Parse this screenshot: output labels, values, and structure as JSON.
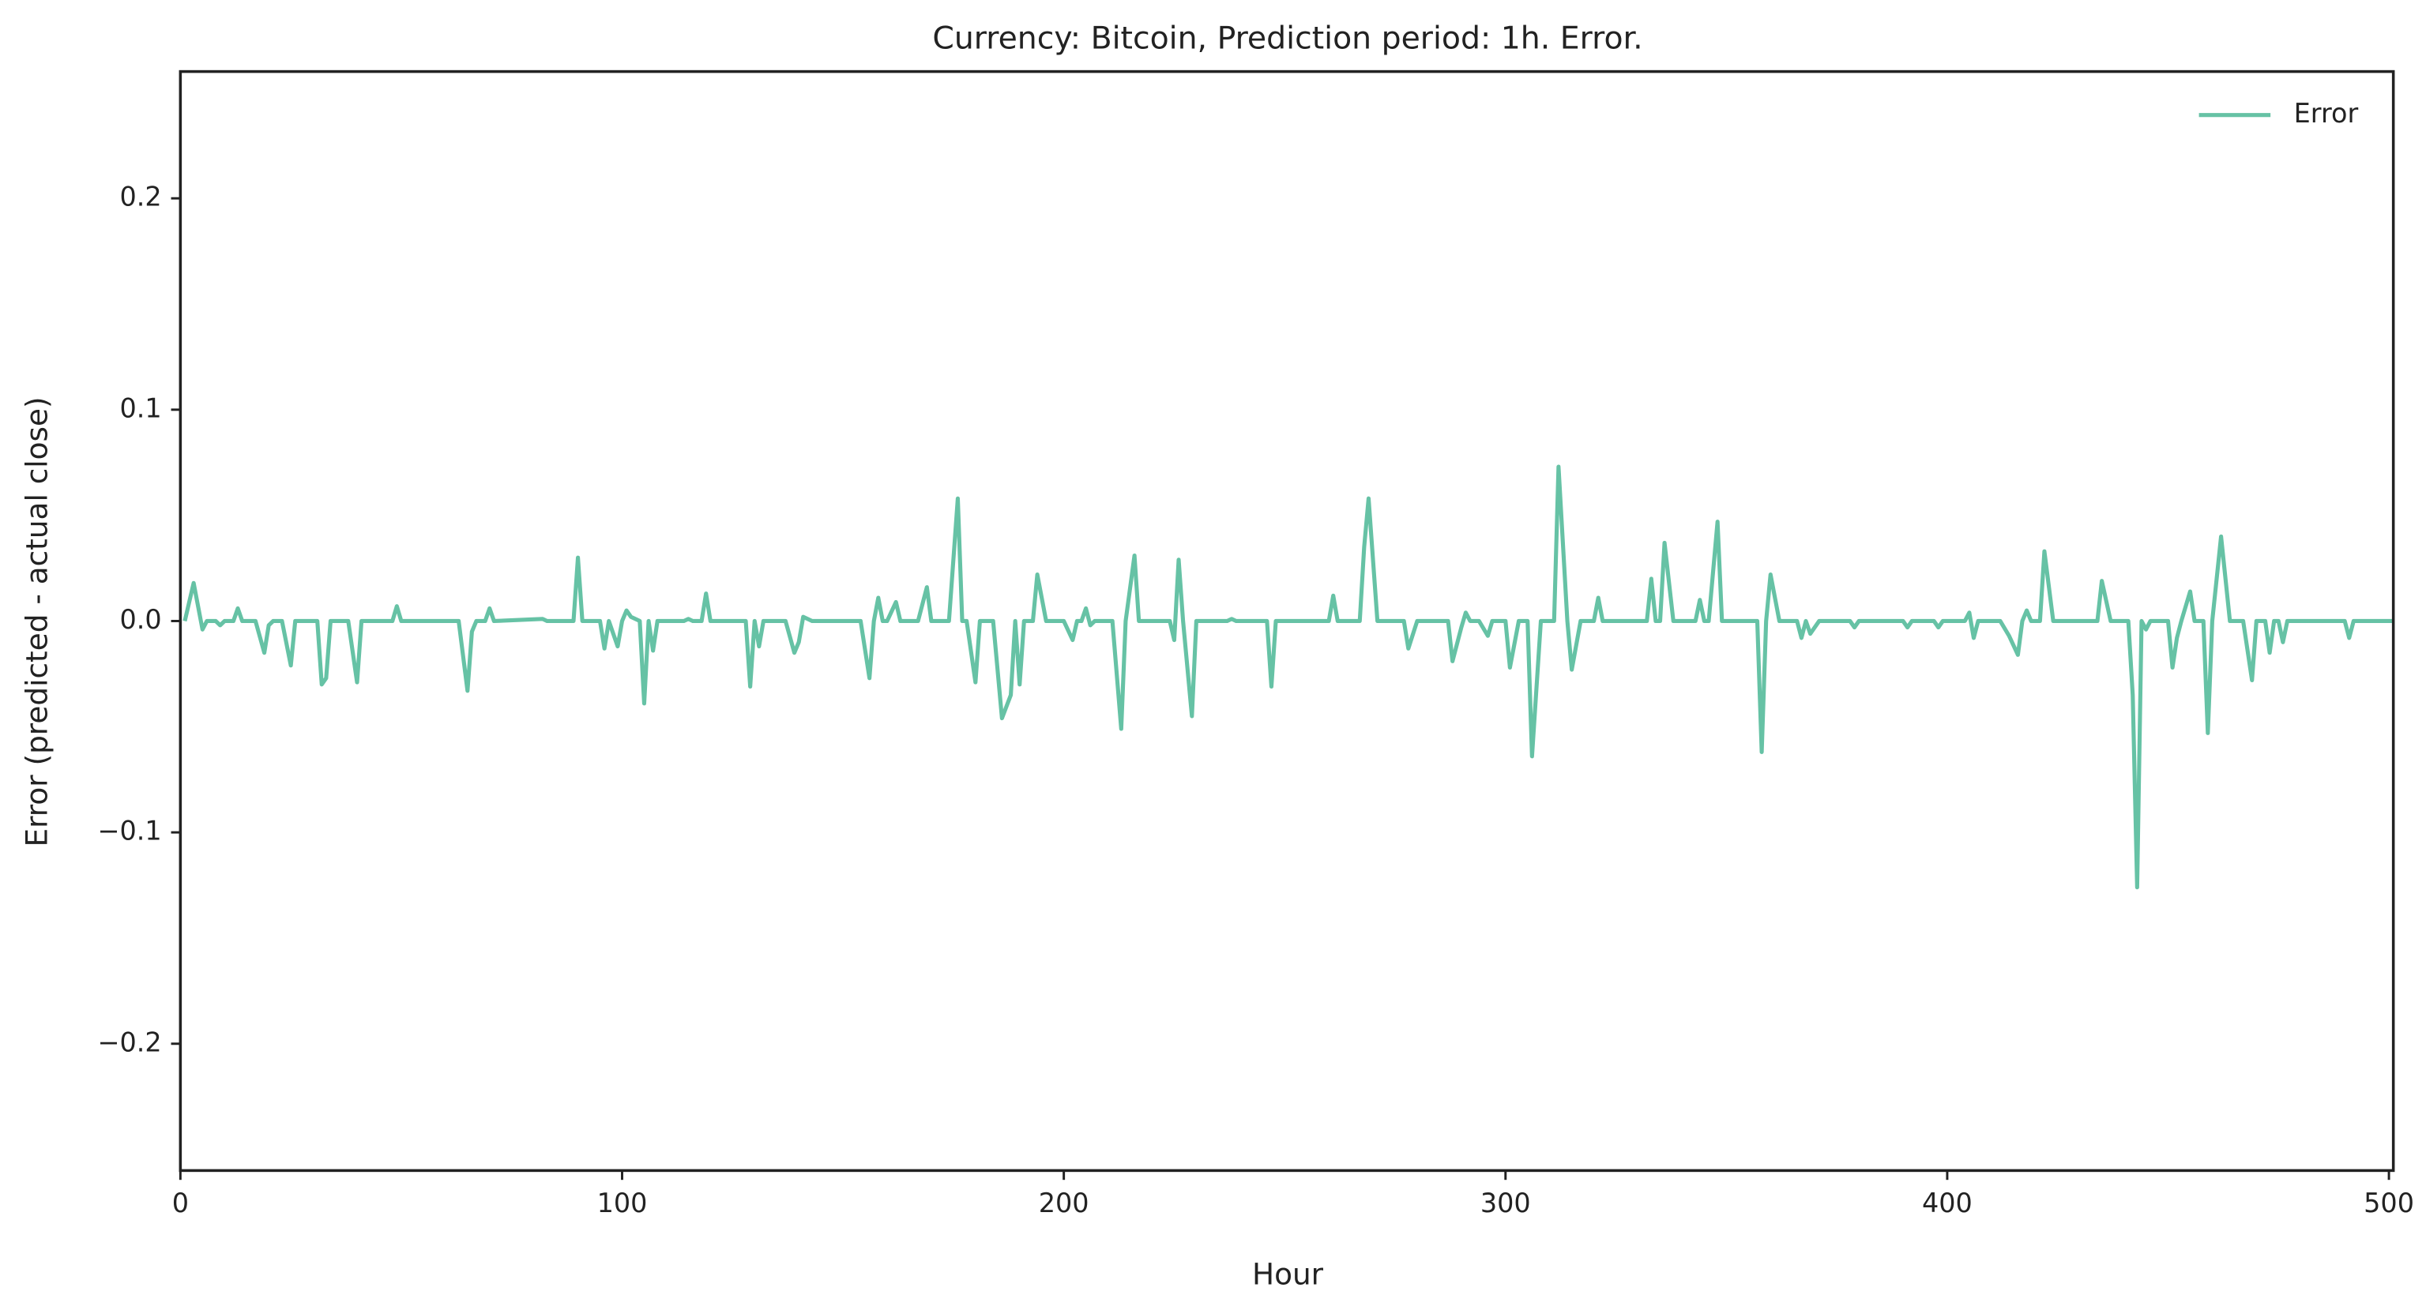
{
  "chart_data": {
    "type": "line",
    "title": "Currency: Bitcoin, Prediction period: 1h. Error.",
    "x_label": "Hour",
    "y_label": "Error (predicted - actual close)",
    "xlim": [
      0,
      501
    ],
    "ylim": [
      -0.26,
      0.26
    ],
    "xticks": [
      0,
      100,
      200,
      300,
      400,
      500
    ],
    "yticks": [
      {
        "value": -0.2,
        "label": "−0.2"
      },
      {
        "value": -0.1,
        "label": "−0.1"
      },
      {
        "value": 0,
        "label": "0.0"
      },
      0.1,
      0.2
    ],
    "legend": "upper right",
    "series": [
      {
        "name": "Error",
        "color": "#66c2a5",
        "x": [
          1,
          3,
          5,
          6,
          8,
          9,
          10,
          12,
          13,
          14,
          17,
          19,
          20,
          21,
          23,
          25,
          26,
          31,
          32,
          33,
          34,
          38,
          40,
          41,
          48,
          49,
          50,
          63,
          65,
          66,
          67,
          69,
          70,
          71,
          82,
          83,
          89,
          90,
          91,
          95,
          96,
          97,
          99,
          100,
          101,
          102,
          104,
          105,
          106,
          107,
          108,
          114,
          115,
          116,
          118,
          119,
          120,
          128,
          129,
          130,
          131,
          132,
          137,
          139,
          140,
          141,
          143,
          154,
          156,
          157,
          158,
          159,
          160,
          162,
          163,
          167,
          169,
          170,
          174,
          176,
          177,
          178,
          180,
          181,
          184,
          186,
          188,
          189,
          190,
          191,
          193,
          194,
          196,
          200,
          202,
          203,
          204,
          205,
          206,
          207,
          211,
          213,
          214,
          216,
          217,
          224,
          225,
          226,
          227,
          229,
          230,
          237,
          238,
          239,
          246,
          247,
          248,
          260,
          261,
          262,
          267,
          268,
          269,
          271,
          277,
          278,
          280,
          287,
          288,
          290,
          291,
          292,
          294,
          296,
          297,
          300,
          301,
          303,
          305,
          306,
          308,
          309,
          311,
          312,
          314,
          315,
          317,
          320,
          321,
          322,
          332,
          333,
          334,
          335,
          336,
          338,
          343,
          344,
          345,
          346,
          348,
          349,
          357,
          358,
          359,
          360,
          362,
          366,
          367,
          368,
          369,
          371,
          378,
          379,
          380,
          390,
          391,
          392,
          397,
          398,
          399,
          404,
          405,
          406,
          407,
          412,
          414,
          416,
          417,
          418,
          419,
          421,
          422,
          424,
          433,
          434,
          435,
          437,
          441,
          442,
          443,
          444,
          445,
          446,
          450,
          451,
          452,
          453,
          455,
          456,
          458,
          459,
          460,
          462,
          464,
          467,
          469,
          470,
          472,
          473,
          474,
          475,
          476,
          477,
          490,
          491,
          492,
          501
        ],
        "values": [
          0,
          0.018,
          -0.004,
          0,
          0,
          -0.002,
          0,
          0,
          0.006,
          0,
          0,
          -0.015,
          -0.002,
          0,
          0,
          -0.021,
          0,
          0,
          -0.03,
          -0.027,
          0,
          0,
          -0.029,
          0,
          0,
          0.007,
          0,
          0,
          -0.033,
          -0.005,
          0,
          0,
          0.006,
          0,
          0.001,
          0,
          0,
          0.03,
          0,
          0,
          -0.013,
          0,
          -0.012,
          0,
          0.005,
          0.002,
          0,
          -0.039,
          0,
          -0.014,
          0,
          0,
          0.001,
          0,
          0,
          0.013,
          0,
          0,
          -0.031,
          0,
          -0.012,
          0,
          0,
          -0.015,
          -0.01,
          0.002,
          0,
          0,
          -0.027,
          0,
          0.011,
          0,
          0,
          0.009,
          0,
          0,
          0.016,
          0,
          0,
          0.058,
          0,
          0,
          -0.029,
          0,
          0,
          -0.046,
          -0.035,
          0,
          -0.03,
          0,
          0,
          0.022,
          0,
          0,
          -0.009,
          0,
          0,
          0.006,
          -0.002,
          0,
          0,
          -0.051,
          0,
          0.031,
          0,
          0,
          -0.009,
          0.029,
          0,
          -0.045,
          0,
          0,
          0.001,
          0,
          0,
          -0.031,
          0,
          0,
          0.012,
          0,
          0,
          0.035,
          0.058,
          0,
          0,
          -0.013,
          0,
          0,
          -0.019,
          -0.003,
          0.004,
          0,
          0,
          -0.007,
          0,
          0,
          -0.022,
          0,
          0,
          -0.064,
          0,
          0,
          0,
          0.073,
          0,
          -0.023,
          0,
          0,
          0.011,
          0,
          0,
          0.02,
          0,
          0,
          0.037,
          0,
          0,
          0.01,
          0,
          0,
          0.047,
          0,
          0,
          -0.062,
          0,
          0.022,
          0,
          0,
          -0.008,
          0,
          -0.006,
          0,
          0,
          -0.003,
          0,
          0,
          -0.003,
          0,
          0,
          -0.003,
          0,
          0,
          0.004,
          -0.008,
          0,
          0,
          -0.007,
          -0.016,
          0,
          0.005,
          0,
          0,
          0.033,
          0,
          0,
          0,
          0.019,
          0,
          0,
          -0.035,
          -0.126,
          0,
          -0.004,
          0,
          0,
          -0.022,
          -0.008,
          0,
          0.014,
          0,
          0,
          -0.053,
          0,
          0.04,
          0,
          0,
          -0.028,
          0,
          0,
          -0.015,
          0,
          0,
          -0.01,
          0,
          0,
          -0.008,
          0,
          0
        ]
      }
    ]
  }
}
